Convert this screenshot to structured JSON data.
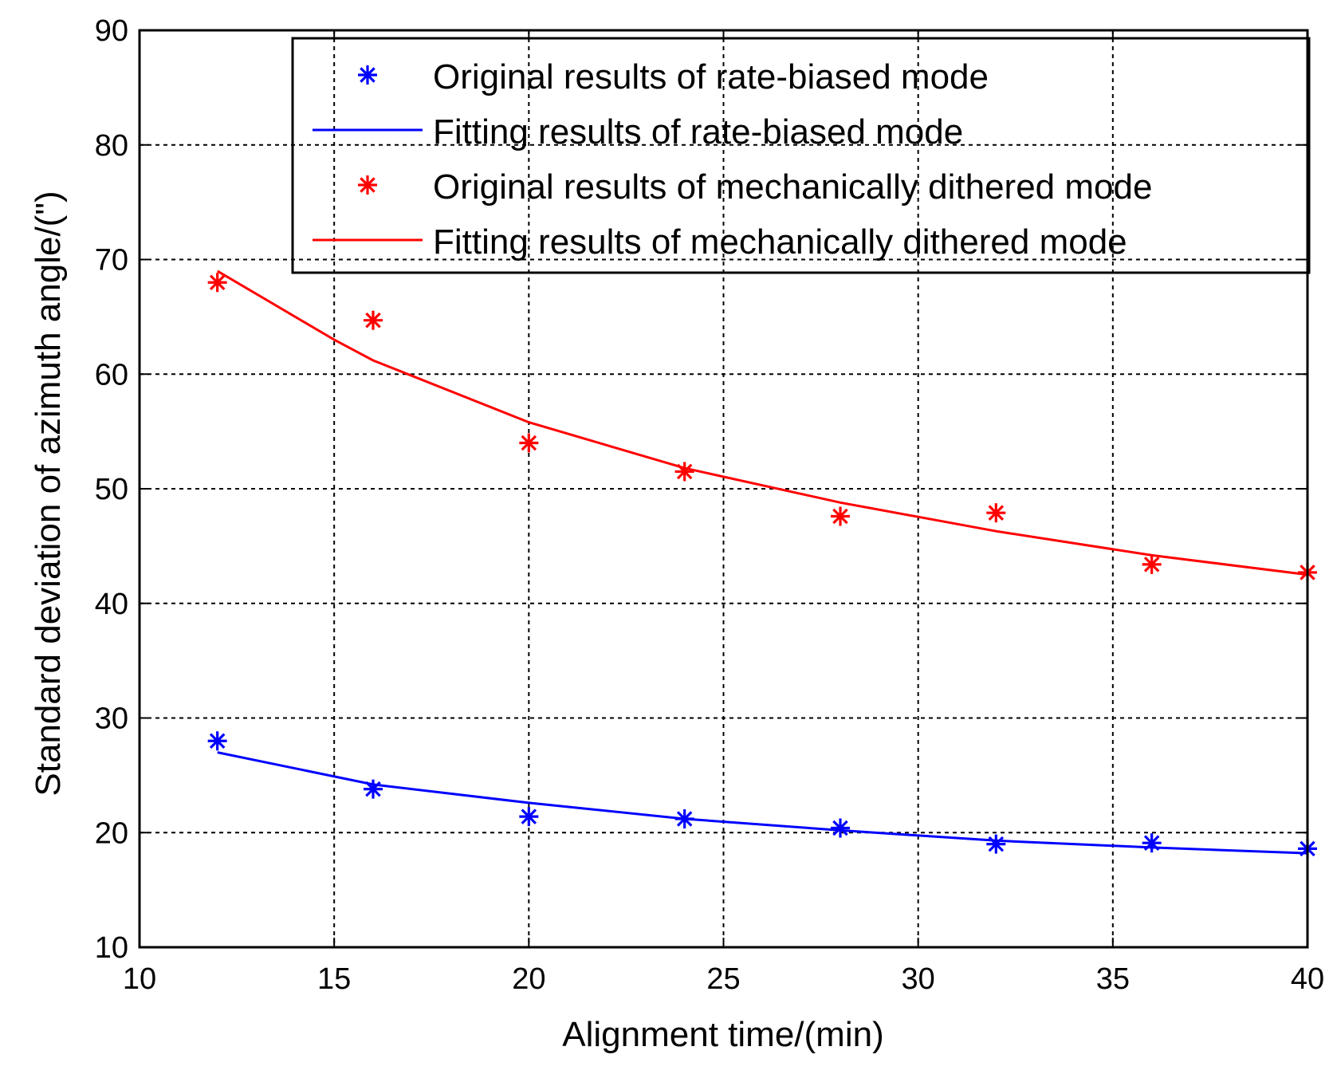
{
  "chart_data": {
    "type": "line",
    "title": "",
    "xlabel": "Alignment time/(min)",
    "ylabel": "Standard deviation of azimuth angle/(\")",
    "xlim": [
      10,
      40
    ],
    "ylim": [
      10,
      90
    ],
    "xticks": [
      10,
      15,
      20,
      25,
      30,
      35,
      40
    ],
    "yticks": [
      10,
      20,
      30,
      40,
      50,
      60,
      70,
      80,
      90
    ],
    "grid": true,
    "legend_position": "top-right",
    "series": [
      {
        "name": "Original results of rate-biased mode",
        "kind": "marker",
        "marker": "*",
        "color": "#0000ff",
        "x": [
          12,
          16,
          20,
          24,
          28,
          32,
          36,
          40
        ],
        "y": [
          28.0,
          23.8,
          21.4,
          21.2,
          20.4,
          19.0,
          19.1,
          18.6
        ]
      },
      {
        "name": "Fitting results of rate-biased mode",
        "kind": "line",
        "color": "#0000ff",
        "x": [
          12,
          16,
          20,
          24,
          28,
          32,
          36,
          40
        ],
        "y": [
          27.0,
          24.2,
          22.6,
          21.2,
          20.2,
          19.3,
          18.7,
          18.2
        ]
      },
      {
        "name": "Original results of mechanically dithered mode",
        "kind": "marker",
        "marker": "*",
        "color": "#ff0000",
        "x": [
          12,
          16,
          20,
          24,
          28,
          32,
          36,
          40
        ],
        "y": [
          68.0,
          64.7,
          54.0,
          51.5,
          47.6,
          47.9,
          43.4,
          42.7
        ]
      },
      {
        "name": "Fitting results of mechanically dithered mode",
        "kind": "line",
        "color": "#ff0000",
        "x": [
          12,
          15,
          16,
          20,
          24,
          28,
          32,
          36,
          40
        ],
        "y": [
          69.0,
          63.0,
          61.2,
          55.8,
          51.8,
          48.8,
          46.3,
          44.2,
          42.5
        ]
      }
    ]
  }
}
